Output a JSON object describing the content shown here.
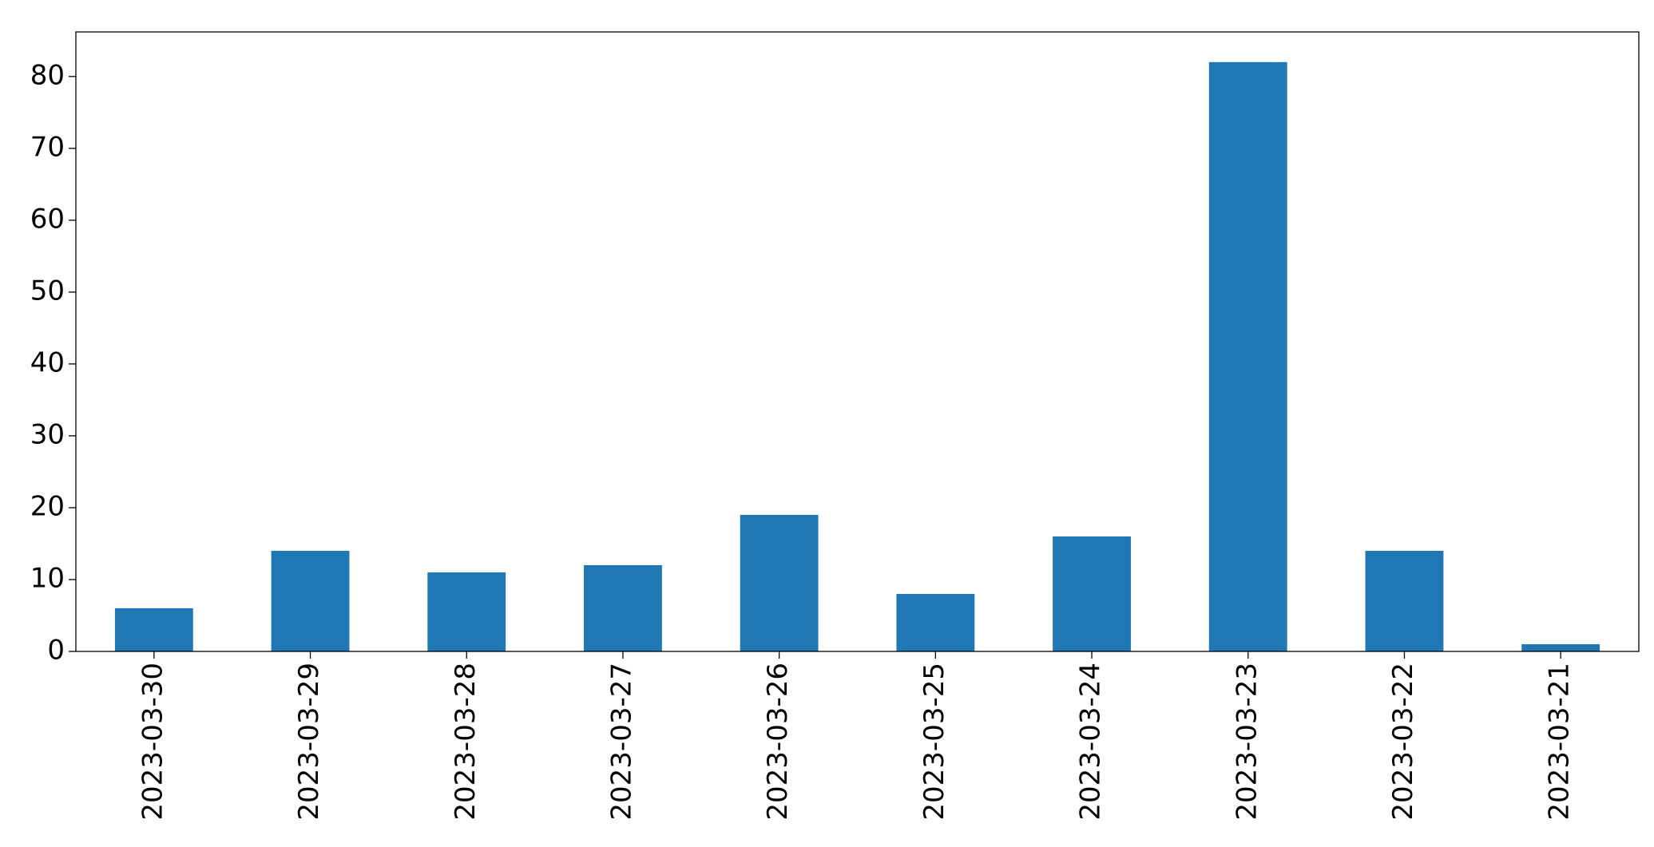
{
  "chart_data": {
    "type": "bar",
    "categories": [
      "2023-03-30",
      "2023-03-29",
      "2023-03-28",
      "2023-03-27",
      "2023-03-26",
      "2023-03-25",
      "2023-03-24",
      "2023-03-23",
      "2023-03-22",
      "2023-03-21"
    ],
    "values": [
      6,
      14,
      11,
      12,
      19,
      8,
      16,
      82,
      14,
      1
    ],
    "color": "#1f77b4",
    "ylim": [
      0,
      86.2
    ],
    "yticks": [
      0,
      10,
      20,
      30,
      40,
      50,
      60,
      70,
      80
    ],
    "grid": false
  }
}
